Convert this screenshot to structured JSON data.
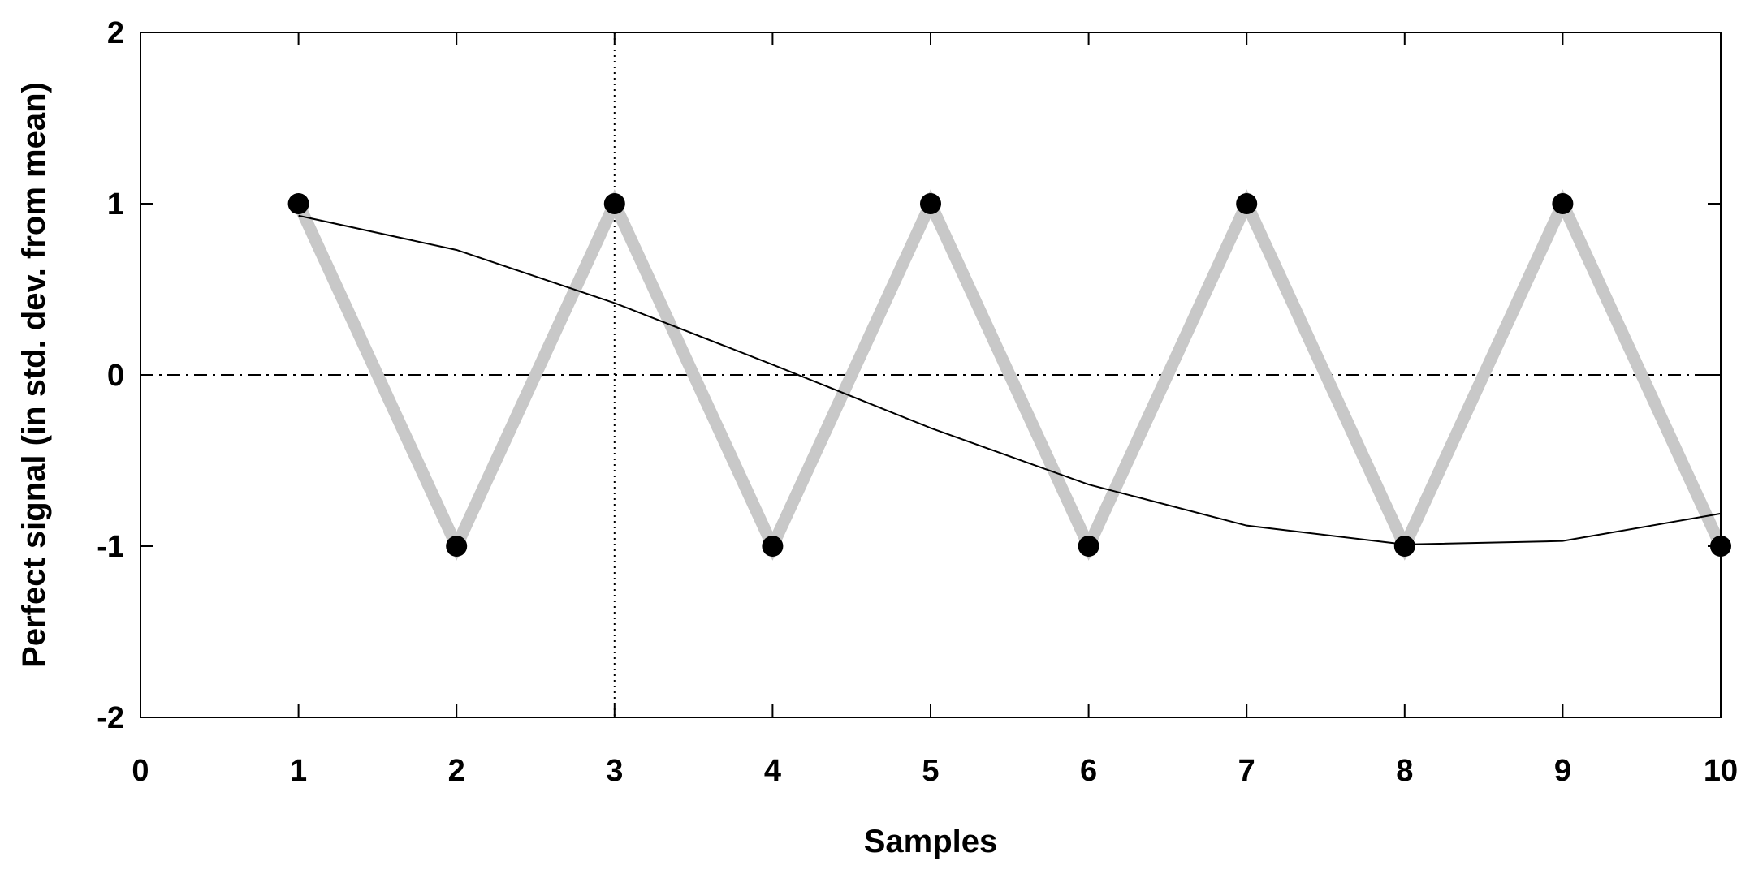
{
  "chart_data": {
    "type": "line",
    "xlabel": "Samples",
    "ylabel": "Perfect signal (in std. dev. from mean)",
    "xlim": [
      0,
      10
    ],
    "ylim": [
      -2,
      2
    ],
    "xticks": [
      0,
      1,
      2,
      3,
      4,
      5,
      6,
      7,
      8,
      9,
      10
    ],
    "yticks": [
      -2,
      -1,
      0,
      1,
      2
    ],
    "grid": false,
    "legend": "none",
    "reference_lines": {
      "horizontal_dashdot_y": 0,
      "vertical_dotted_x": 3
    },
    "series": [
      {
        "style": "thick-line-with-points",
        "color": "#c8c8c8",
        "point_color": "#000000",
        "x": [
          1,
          2,
          3,
          4,
          5,
          6,
          7,
          8,
          9,
          10
        ],
        "values": [
          1,
          -1,
          1,
          -1,
          1,
          -1,
          1,
          -1,
          1,
          -1
        ]
      },
      {
        "style": "thin-line",
        "color": "#000000",
        "x": [
          1,
          2,
          3,
          4,
          5,
          6,
          7,
          8,
          9,
          10
        ],
        "values": [
          0.93,
          0.73,
          0.42,
          0.06,
          -0.31,
          -0.64,
          -0.88,
          -0.99,
          -0.97,
          -0.81
        ]
      }
    ]
  }
}
